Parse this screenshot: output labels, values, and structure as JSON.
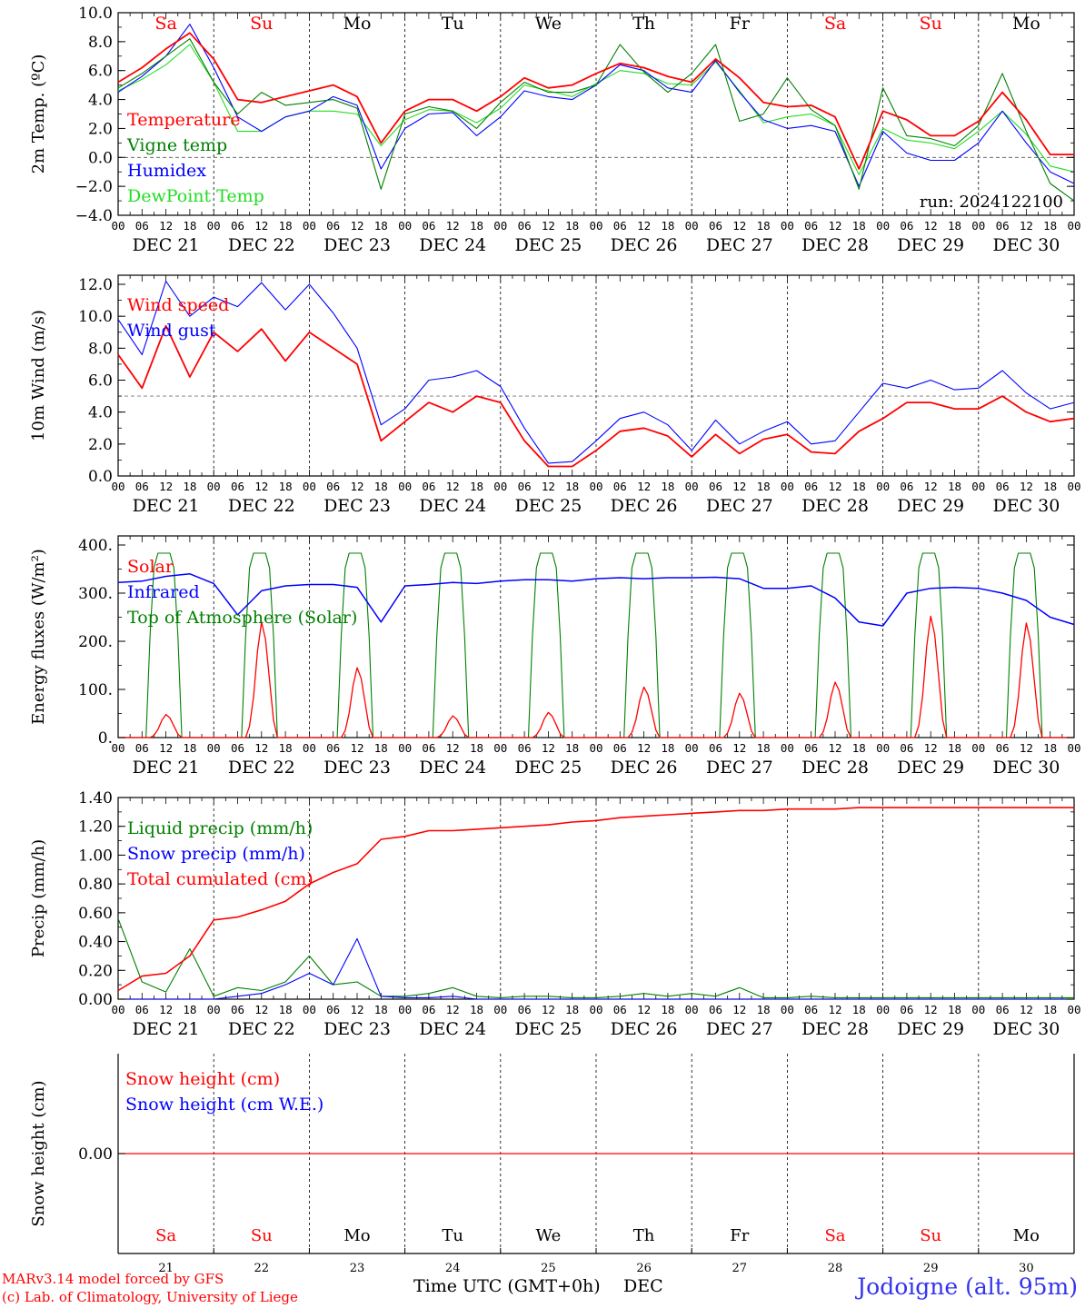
{
  "colors": {
    "red": "#ff0000",
    "blue": "#0000ff",
    "green": "#008000",
    "lightgreen": "#22dd22",
    "black": "#000000",
    "bluebig": "#3333ee"
  },
  "x_tick_hours": [
    "00",
    "06",
    "12",
    "18"
  ],
  "x_end_tick": "00",
  "date_labels": [
    "DEC 21",
    "DEC 22",
    "DEC 23",
    "DEC 24",
    "DEC 25",
    "DEC 26",
    "DEC 27",
    "DEC 28",
    "DEC 29",
    "DEC 30"
  ],
  "weekdays": [
    {
      "label": "Sa",
      "color": "#ff0000"
    },
    {
      "label": "Su",
      "color": "#ff0000"
    },
    {
      "label": "Mo",
      "color": "#000000"
    },
    {
      "label": "Tu",
      "color": "#000000"
    },
    {
      "label": "We",
      "color": "#000000"
    },
    {
      "label": "Th",
      "color": "#000000"
    },
    {
      "label": "Fr",
      "color": "#000000"
    },
    {
      "label": "Sa",
      "color": "#ff0000"
    },
    {
      "label": "Su",
      "color": "#ff0000"
    },
    {
      "label": "Mo",
      "color": "#000000"
    }
  ],
  "bottom_day_numbers": [
    "21",
    "22",
    "23",
    "24",
    "25",
    "26",
    "27",
    "28",
    "29",
    "30"
  ],
  "xaxis_title": "Time UTC (GMT+0h)",
  "xaxis_month": "DEC",
  "footer": {
    "model_line1": "MARv3.14 model forced by GFS",
    "model_line2": "(c) Lab. of Climatology, University of Liege",
    "location": "Jodoigne (alt. 95m)"
  },
  "chart_data": [
    {
      "type": "line",
      "ylabel": "2m Temp. (ºC)",
      "ylim": [
        -4,
        10
      ],
      "yticks": [
        "10.0",
        "8.0",
        "6.0",
        "4.0",
        "2.0",
        "0.0",
        "−2.0",
        "−4.0"
      ],
      "yticks_values": [
        10,
        8,
        6,
        4,
        2,
        0,
        -2,
        -4
      ],
      "reference_line": 0,
      "annotation": "run: 2024122100",
      "x_hours": [
        0,
        6,
        12,
        18,
        24,
        30,
        36,
        42,
        48,
        54,
        60,
        66,
        72,
        78,
        84,
        90,
        96,
        102,
        108,
        114,
        120,
        126,
        132,
        138,
        144,
        150,
        156,
        162,
        168,
        174,
        180,
        186,
        192,
        198,
        204,
        210,
        216,
        222,
        228,
        234,
        240
      ],
      "series": [
        {
          "name": "Temperature",
          "color": "#ff0000",
          "values": [
            5.2,
            6.2,
            7.5,
            8.6,
            6.8,
            4.0,
            3.8,
            4.2,
            4.6,
            5.0,
            4.2,
            1.0,
            3.2,
            4.0,
            4.0,
            3.2,
            4.2,
            5.5,
            4.8,
            5.0,
            5.8,
            6.5,
            6.2,
            5.6,
            5.2,
            6.8,
            5.5,
            3.8,
            3.5,
            3.6,
            2.8,
            -0.8,
            3.2,
            2.6,
            1.5,
            1.5,
            2.5,
            4.5,
            2.6,
            0.2,
            0.2
          ]
        },
        {
          "name": "Vigne temp",
          "color": "#008000",
          "values": [
            4.8,
            5.8,
            7.0,
            8.2,
            5.2,
            3.0,
            4.5,
            3.6,
            3.8,
            4.0,
            3.4,
            -2.2,
            3.0,
            3.5,
            3.2,
            2.0,
            3.8,
            5.2,
            4.5,
            4.5,
            5.0,
            7.8,
            5.9,
            4.5,
            5.8,
            7.8,
            2.5,
            3.0,
            5.5,
            3.3,
            2.2,
            -2.2,
            4.8,
            1.5,
            1.3,
            0.8,
            2.2,
            5.8,
            1.8,
            -1.8,
            -3.0
          ]
        },
        {
          "name": "Humidex",
          "color": "#0000ff",
          "values": [
            4.5,
            5.6,
            7.0,
            9.2,
            6.2,
            2.8,
            1.8,
            2.8,
            3.2,
            4.2,
            3.6,
            -0.8,
            2.0,
            3.0,
            3.1,
            1.5,
            2.8,
            4.6,
            4.2,
            4.0,
            5.0,
            6.4,
            6.0,
            4.8,
            4.5,
            6.7,
            4.5,
            2.6,
            2.0,
            2.2,
            1.8,
            -2.0,
            1.8,
            0.3,
            -0.2,
            -0.2,
            1.0,
            3.2,
            1.0,
            -1.0,
            -1.8
          ]
        },
        {
          "name": "DewPoint Temp",
          "color": "#22dd22",
          "values": [
            4.6,
            5.4,
            6.4,
            7.8,
            5.2,
            1.8,
            1.8,
            2.8,
            3.2,
            3.2,
            3.0,
            0.8,
            2.6,
            3.3,
            3.2,
            2.4,
            3.4,
            5.0,
            4.6,
            4.2,
            5.1,
            6.0,
            5.8,
            5.1,
            5.0,
            6.6,
            4.6,
            2.4,
            2.8,
            3.0,
            2.2,
            -1.2,
            2.0,
            1.2,
            1.0,
            0.6,
            1.8,
            3.2,
            1.6,
            -0.6,
            -1.0
          ]
        }
      ]
    },
    {
      "type": "line",
      "ylabel": "10m Wind (m/s)",
      "ylim": [
        0,
        12
      ],
      "yticks": [
        "12.0",
        "10.0",
        "8.0",
        "6.0",
        "4.0",
        "2.0",
        "0.0"
      ],
      "yticks_values": [
        12,
        10,
        8,
        6,
        4,
        2,
        0
      ],
      "reference_line": 5,
      "x_hours": [
        0,
        6,
        12,
        18,
        24,
        30,
        36,
        42,
        48,
        54,
        60,
        66,
        72,
        78,
        84,
        90,
        96,
        102,
        108,
        114,
        120,
        126,
        132,
        138,
        144,
        150,
        156,
        162,
        168,
        174,
        180,
        186,
        192,
        198,
        204,
        210,
        216,
        222,
        228,
        234,
        240
      ],
      "series": [
        {
          "name": "Wind speed",
          "color": "#ff0000",
          "values": [
            7.6,
            5.5,
            9.4,
            6.2,
            9.0,
            7.8,
            9.2,
            7.2,
            9.0,
            8.0,
            7.0,
            2.2,
            3.4,
            4.6,
            4.0,
            5.0,
            4.6,
            2.2,
            0.6,
            0.6,
            1.6,
            2.8,
            3.0,
            2.5,
            1.2,
            2.6,
            1.4,
            2.3,
            2.6,
            1.5,
            1.4,
            2.8,
            3.6,
            4.6,
            4.6,
            4.2,
            4.2,
            5.0,
            4.0,
            3.4,
            3.6
          ]
        },
        {
          "name": "Wind gust",
          "color": "#0000ff",
          "values": [
            9.8,
            7.6,
            12.2,
            10.0,
            11.2,
            10.6,
            12.1,
            10.4,
            12.0,
            10.2,
            8.0,
            3.2,
            4.2,
            6.0,
            6.2,
            6.6,
            5.6,
            3.0,
            0.8,
            0.9,
            2.2,
            3.6,
            4.0,
            3.2,
            1.6,
            3.5,
            2.0,
            2.8,
            3.4,
            2.0,
            2.2,
            4.0,
            5.8,
            5.5,
            6.0,
            5.4,
            5.5,
            6.6,
            5.2,
            4.2,
            4.6
          ]
        }
      ]
    },
    {
      "type": "line",
      "ylabel": "Energy fluxes (W/m²)",
      "ylim": [
        0,
        400
      ],
      "yticks": [
        "400.",
        "300.",
        "200.",
        "100.",
        "0."
      ],
      "yticks_values": [
        400,
        300,
        200,
        100,
        0
      ],
      "top_of_atmosphere_peaks": [
        383,
        383,
        383,
        383,
        383,
        383,
        383,
        383,
        383,
        383
      ],
      "solar_peaks": [
        48,
        240,
        145,
        45,
        52,
        105,
        92,
        115,
        252,
        238
      ],
      "infrared_x_hours": [
        0,
        6,
        12,
        18,
        24,
        30,
        36,
        42,
        48,
        54,
        60,
        66,
        72,
        78,
        84,
        90,
        96,
        102,
        108,
        114,
        120,
        126,
        132,
        138,
        144,
        150,
        156,
        162,
        168,
        174,
        180,
        186,
        192,
        198,
        204,
        210,
        216,
        222,
        228,
        234,
        240
      ],
      "series": [
        {
          "name": "Solar",
          "color": "#ff0000"
        },
        {
          "name": "Infrared",
          "color": "#0000ff",
          "values": [
            322,
            325,
            335,
            340,
            320,
            255,
            305,
            315,
            318,
            318,
            312,
            240,
            315,
            318,
            322,
            320,
            325,
            328,
            328,
            325,
            330,
            332,
            330,
            332,
            332,
            333,
            330,
            310,
            310,
            315,
            290,
            240,
            232,
            300,
            310,
            312,
            310,
            300,
            285,
            250,
            235
          ]
        },
        {
          "name": "Top of Atmosphere (Solar)",
          "color": "#008000"
        }
      ]
    },
    {
      "type": "line",
      "ylabel": "Precip (mm/h)",
      "ylim": [
        0,
        1.4
      ],
      "yticks": [
        "1.40",
        "1.20",
        "1.00",
        "0.80",
        "0.60",
        "0.40",
        "0.20",
        "0.00"
      ],
      "yticks_values": [
        1.4,
        1.2,
        1.0,
        0.8,
        0.6,
        0.4,
        0.2,
        0.0
      ],
      "x_hours": [
        0,
        6,
        12,
        18,
        24,
        30,
        36,
        42,
        48,
        54,
        60,
        66,
        72,
        78,
        84,
        90,
        96,
        102,
        108,
        114,
        120,
        126,
        132,
        138,
        144,
        150,
        156,
        162,
        168,
        174,
        180,
        186,
        192,
        198,
        204,
        210,
        216,
        222,
        228,
        234,
        240
      ],
      "series": [
        {
          "name": "Liquid precip (mm/h)",
          "color": "#008000",
          "values": [
            0.56,
            0.12,
            0.05,
            0.35,
            0.02,
            0.08,
            0.06,
            0.12,
            0.3,
            0.1,
            0.12,
            0.02,
            0.02,
            0.04,
            0.08,
            0.02,
            0.01,
            0.02,
            0.02,
            0.01,
            0.01,
            0.02,
            0.04,
            0.02,
            0.04,
            0.02,
            0.08,
            0.01,
            0.01,
            0.02,
            0.01,
            0.01,
            0.01,
            0.01,
            0.01,
            0.01,
            0.01,
            0.01,
            0.01,
            0.01,
            0.01
          ]
        },
        {
          "name": "Snow precip (mm/h)",
          "color": "#0000ff",
          "values": [
            0,
            0,
            0,
            0,
            0,
            0.02,
            0.04,
            0.1,
            0.18,
            0.1,
            0.42,
            0.02,
            0.01,
            0.01,
            0.02,
            0,
            0,
            0,
            0,
            0,
            0,
            0,
            0,
            0,
            0,
            0,
            0,
            0,
            0,
            0,
            0,
            0,
            0,
            0,
            0,
            0,
            0,
            0,
            0,
            0,
            0
          ]
        },
        {
          "name": "Total cumulated (cm)",
          "color": "#ff0000",
          "values": [
            0.06,
            0.16,
            0.18,
            0.3,
            0.55,
            0.57,
            0.62,
            0.68,
            0.8,
            0.88,
            0.94,
            1.11,
            1.13,
            1.17,
            1.17,
            1.18,
            1.19,
            1.2,
            1.21,
            1.23,
            1.24,
            1.26,
            1.27,
            1.28,
            1.29,
            1.3,
            1.31,
            1.31,
            1.32,
            1.32,
            1.32,
            1.33,
            1.33,
            1.33,
            1.33,
            1.33,
            1.33,
            1.33,
            1.33,
            1.33,
            1.33
          ]
        }
      ]
    },
    {
      "type": "line",
      "ylabel": "Snow height (cm)",
      "yticks": [
        "0.00"
      ],
      "yticks_values": [
        0
      ],
      "series": [
        {
          "name": "Snow height (cm)",
          "color": "#ff0000",
          "values": [
            0,
            0
          ]
        },
        {
          "name": "Snow height (cm W.E.)",
          "color": "#0000ff",
          "values": [
            0,
            0
          ]
        }
      ]
    }
  ]
}
